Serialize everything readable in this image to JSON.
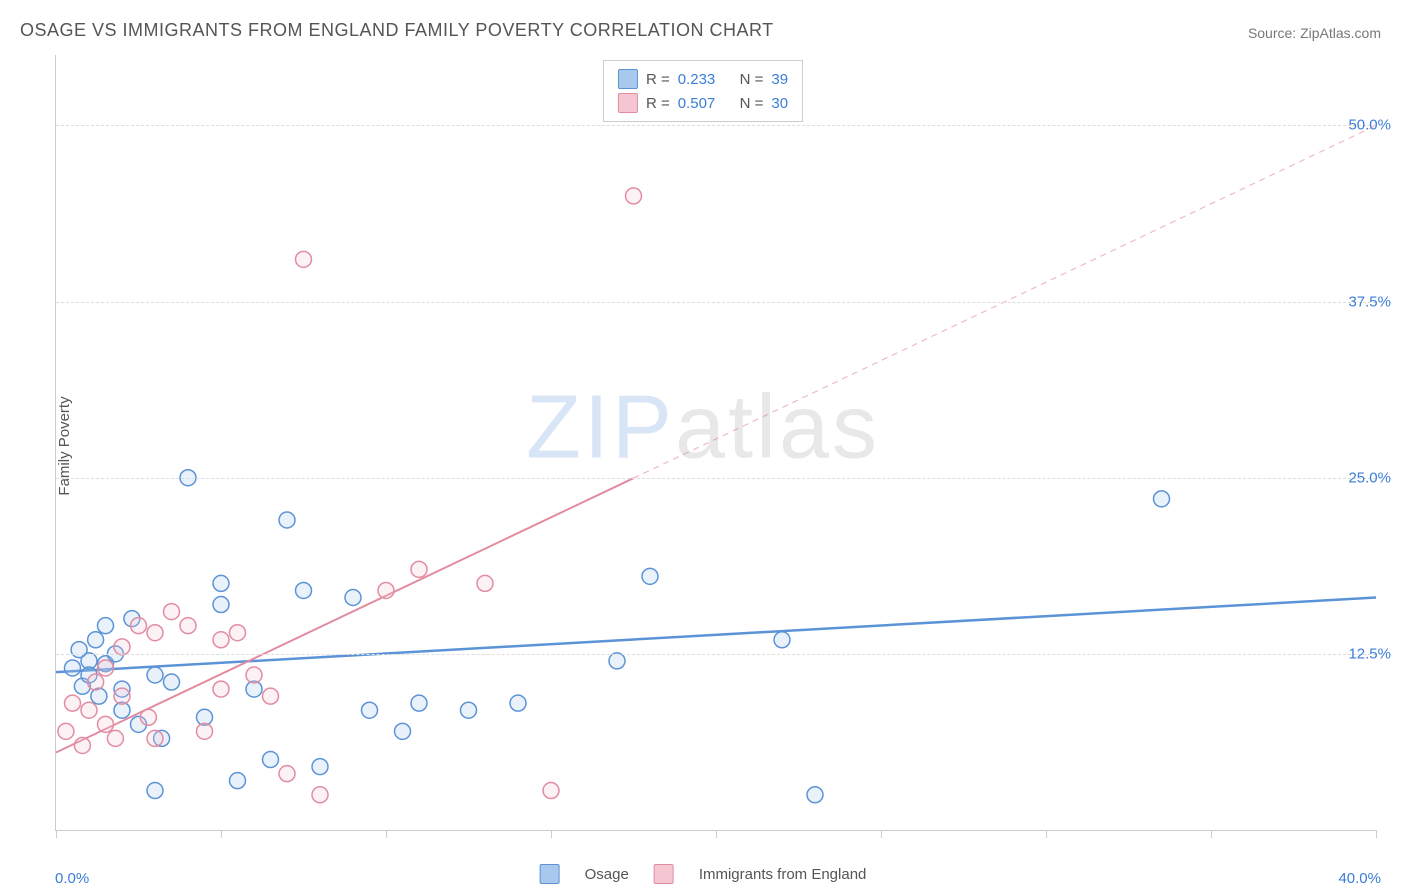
{
  "title": "OSAGE VS IMMIGRANTS FROM ENGLAND FAMILY POVERTY CORRELATION CHART",
  "source": "Source: ZipAtlas.com",
  "ylabel": "Family Poverty",
  "watermark_a": "ZIP",
  "watermark_b": "atlas",
  "chart": {
    "type": "scatter",
    "xlim": [
      0,
      40
    ],
    "ylim": [
      0,
      55
    ],
    "x_min_label": "0.0%",
    "x_max_label": "40.0%",
    "y_ticks": [
      12.5,
      25.0,
      37.5,
      50.0
    ],
    "y_tick_labels": [
      "12.5%",
      "25.0%",
      "37.5%",
      "50.0%"
    ],
    "x_tick_step": 5,
    "background_color": "#ffffff",
    "grid_color": "#dddddd",
    "axis_color": "#cccccc",
    "label_color": "#555555",
    "tick_label_color": "#3b7dd8",
    "title_fontsize": 18,
    "label_fontsize": 15,
    "marker_radius": 8,
    "marker_stroke_width": 1.5,
    "marker_fill_opacity": 0.25
  },
  "series": [
    {
      "name": "Osage",
      "color_stroke": "#5b93d6",
      "color_fill": "#a8c8ee",
      "trend": {
        "x1": 0,
        "y1": 11.2,
        "x2": 40,
        "y2": 16.5,
        "solid_until_x": 40,
        "width": 2.5
      },
      "stats": {
        "R_label": "R =",
        "R": "0.233",
        "N_label": "N =",
        "N": "39"
      },
      "points": [
        [
          0.5,
          11.5
        ],
        [
          0.7,
          12.8
        ],
        [
          0.8,
          10.2
        ],
        [
          1.0,
          12.0
        ],
        [
          1.0,
          11.0
        ],
        [
          1.2,
          13.5
        ],
        [
          1.3,
          9.5
        ],
        [
          1.5,
          14.5
        ],
        [
          1.5,
          11.8
        ],
        [
          1.8,
          12.5
        ],
        [
          2.0,
          8.5
        ],
        [
          2.0,
          10.0
        ],
        [
          2.3,
          15.0
        ],
        [
          2.5,
          7.5
        ],
        [
          3.0,
          11.0
        ],
        [
          3.0,
          2.8
        ],
        [
          3.2,
          6.5
        ],
        [
          3.5,
          10.5
        ],
        [
          4.0,
          25.0
        ],
        [
          4.5,
          8.0
        ],
        [
          5.0,
          17.5
        ],
        [
          5.0,
          16.0
        ],
        [
          5.5,
          3.5
        ],
        [
          6.0,
          10.0
        ],
        [
          6.5,
          5.0
        ],
        [
          7.0,
          22.0
        ],
        [
          7.5,
          17.0
        ],
        [
          8.0,
          4.5
        ],
        [
          9.0,
          16.5
        ],
        [
          9.5,
          8.5
        ],
        [
          10.5,
          7.0
        ],
        [
          11.0,
          9.0
        ],
        [
          12.5,
          8.5
        ],
        [
          14.0,
          9.0
        ],
        [
          17.0,
          12.0
        ],
        [
          18.0,
          18.0
        ],
        [
          22.0,
          13.5
        ],
        [
          23.0,
          2.5
        ],
        [
          33.5,
          23.5
        ]
      ]
    },
    {
      "name": "Immigrants from England",
      "color_stroke": "#e28ca0",
      "color_fill": "#f5c6d2",
      "trend": {
        "x1": 0,
        "y1": 5.5,
        "x2": 40,
        "y2": 50.0,
        "solid_until_x": 17.5,
        "width": 2,
        "dash": "6,5"
      },
      "stats": {
        "R_label": "R =",
        "R": "0.507",
        "N_label": "N =",
        "N": "30"
      },
      "points": [
        [
          0.3,
          7.0
        ],
        [
          0.5,
          9.0
        ],
        [
          0.8,
          6.0
        ],
        [
          1.0,
          8.5
        ],
        [
          1.2,
          10.5
        ],
        [
          1.5,
          7.5
        ],
        [
          1.5,
          11.5
        ],
        [
          1.8,
          6.5
        ],
        [
          2.0,
          9.5
        ],
        [
          2.0,
          13.0
        ],
        [
          2.5,
          14.5
        ],
        [
          2.8,
          8.0
        ],
        [
          3.0,
          14.0
        ],
        [
          3.0,
          6.5
        ],
        [
          3.5,
          15.5
        ],
        [
          4.0,
          14.5
        ],
        [
          4.5,
          7.0
        ],
        [
          5.0,
          13.5
        ],
        [
          5.0,
          10.0
        ],
        [
          5.5,
          14.0
        ],
        [
          6.0,
          11.0
        ],
        [
          6.5,
          9.5
        ],
        [
          7.0,
          4.0
        ],
        [
          7.5,
          40.5
        ],
        [
          8.0,
          2.5
        ],
        [
          10.0,
          17.0
        ],
        [
          11.0,
          18.5
        ],
        [
          13.0,
          17.5
        ],
        [
          15.0,
          2.8
        ],
        [
          17.5,
          45.0
        ]
      ]
    }
  ],
  "legend_bottom": {
    "a": "Osage",
    "b": "Immigrants from England"
  }
}
